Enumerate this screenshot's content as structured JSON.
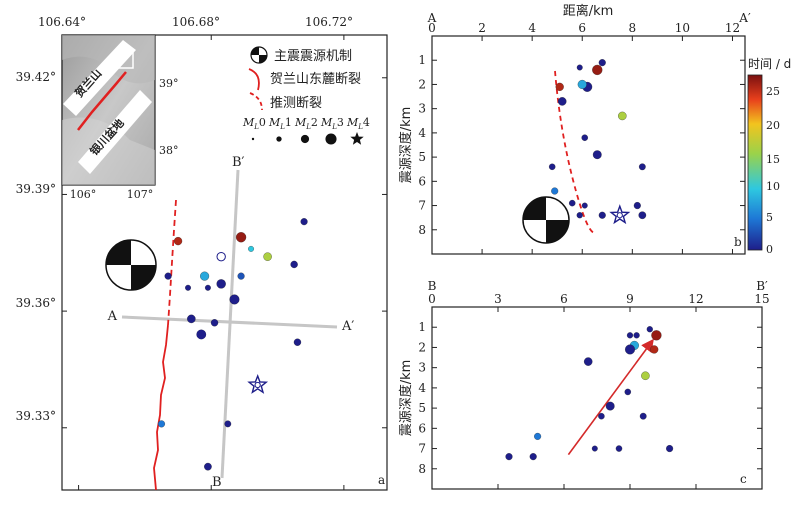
{
  "map": {
    "panel_label": "a",
    "lon_ticks": [
      "106.64°",
      "106.68°",
      "106.72°"
    ],
    "lat_ticks": [
      "39.42°",
      "39.39°",
      "39.36°",
      "39.33°"
    ],
    "profile_a_start": "A",
    "profile_a_end": "A′",
    "profile_b_start": "B",
    "profile_b_end": "B′",
    "inset": {
      "lon_ticks": [
        "106°",
        "107°"
      ],
      "lat_ticks": [
        "39°",
        "38°"
      ],
      "label_mountain": "贺兰山",
      "label_basin": "银川盆地"
    },
    "legend": {
      "mainshock": "主震震源机制",
      "fault": "贺兰山东麓断裂",
      "inferred_fault": "推测断裂",
      "mag_labels": [
        "M",
        "M",
        "M",
        "M",
        "M"
      ],
      "mag_subs": [
        "L",
        "L",
        "L",
        "L",
        "L"
      ],
      "mag_values": [
        "0",
        "1",
        "2",
        "3",
        "4"
      ]
    }
  },
  "colorbar": {
    "title": "时间 / d",
    "ticks": [
      "25",
      "20",
      "15",
      "10",
      "5",
      "0"
    ]
  },
  "chart_data": [
    {
      "type": "scatter",
      "panel_label": "a",
      "xlim": [
        106.635,
        106.733
      ],
      "ylim": [
        39.314,
        39.431
      ],
      "x_ticks": [
        106.64,
        106.68,
        106.72
      ],
      "y_ticks": [
        39.42,
        39.39,
        39.36,
        39.33
      ],
      "events": [
        {
          "x": 106.708,
          "y": 39.383,
          "day": 0,
          "mag": 1.5
        },
        {
          "x": 106.689,
          "y": 39.379,
          "day": 27,
          "mag": 2.6
        },
        {
          "x": 106.67,
          "y": 39.378,
          "day": 26,
          "mag": 1.9
        },
        {
          "x": 106.697,
          "y": 39.374,
          "day": 16,
          "mag": 2.0
        },
        {
          "x": 106.692,
          "y": 39.376,
          "day": 10,
          "mag": 1.1
        },
        {
          "x": 106.667,
          "y": 39.369,
          "day": 0,
          "mag": 1.5
        },
        {
          "x": 106.678,
          "y": 39.369,
          "day": 8,
          "mag": 2.2
        },
        {
          "x": 106.689,
          "y": 39.369,
          "day": 3,
          "mag": 1.5
        },
        {
          "x": 106.683,
          "y": 39.367,
          "day": 0,
          "mag": 2.3
        },
        {
          "x": 106.705,
          "y": 39.372,
          "day": 0,
          "mag": 1.6
        },
        {
          "x": 106.673,
          "y": 39.366,
          "day": 0,
          "mag": 1.1
        },
        {
          "x": 106.679,
          "y": 39.366,
          "day": 0,
          "mag": 1.1
        },
        {
          "x": 106.687,
          "y": 39.363,
          "day": 0,
          "mag": 2.5
        },
        {
          "x": 106.674,
          "y": 39.358,
          "day": 0,
          "mag": 2.0
        },
        {
          "x": 106.681,
          "y": 39.357,
          "day": 0,
          "mag": 1.6
        },
        {
          "x": 106.677,
          "y": 39.354,
          "day": 0,
          "mag": 2.4
        },
        {
          "x": 106.706,
          "y": 39.352,
          "day": 0,
          "mag": 1.6
        },
        {
          "x": 106.694,
          "y": 39.341,
          "day": 0,
          "mag": 3.1
        },
        {
          "x": 106.685,
          "y": 39.331,
          "day": 0,
          "mag": 1.4
        },
        {
          "x": 106.665,
          "y": 39.331,
          "day": 5,
          "mag": 1.5
        },
        {
          "x": 106.679,
          "y": 39.32,
          "day": 0,
          "mag": 1.7
        }
      ]
    },
    {
      "type": "scatter",
      "panel_label": "b",
      "title": "距离/km",
      "xlabel": "距离/km",
      "ylabel": "震源深度/km",
      "xlim": [
        0,
        12.5
      ],
      "ylim": [
        0,
        9
      ],
      "x_ticks": [
        0,
        2,
        4,
        6,
        8,
        10,
        12
      ],
      "y_ticks": [
        1,
        2,
        3,
        4,
        5,
        6,
        7,
        8
      ],
      "start_label": "A",
      "end_label": "A′",
      "events": [
        {
          "x": 6.8,
          "y": 1.1,
          "day": 0,
          "mag": 1.5
        },
        {
          "x": 6.6,
          "y": 1.4,
          "day": 27,
          "mag": 2.6
        },
        {
          "x": 5.9,
          "y": 1.3,
          "day": 0,
          "mag": 1.1
        },
        {
          "x": 5.1,
          "y": 2.1,
          "day": 26,
          "mag": 1.9
        },
        {
          "x": 6.2,
          "y": 2.1,
          "day": 0,
          "mag": 2.5
        },
        {
          "x": 6.0,
          "y": 2.0,
          "day": 8,
          "mag": 2.2
        },
        {
          "x": 5.2,
          "y": 2.7,
          "day": 0,
          "mag": 2.0
        },
        {
          "x": 7.6,
          "y": 3.3,
          "day": 16,
          "mag": 2.0
        },
        {
          "x": 6.1,
          "y": 4.2,
          "day": 0,
          "mag": 1.3
        },
        {
          "x": 6.6,
          "y": 4.9,
          "day": 0,
          "mag": 2.1
        },
        {
          "x": 4.8,
          "y": 5.4,
          "day": 0,
          "mag": 1.3
        },
        {
          "x": 8.4,
          "y": 5.4,
          "day": 0,
          "mag": 1.4
        },
        {
          "x": 4.9,
          "y": 6.4,
          "day": 5,
          "mag": 1.5
        },
        {
          "x": 5.6,
          "y": 6.9,
          "day": 0,
          "mag": 1.3
        },
        {
          "x": 6.1,
          "y": 7.0,
          "day": 0,
          "mag": 1.1
        },
        {
          "x": 8.2,
          "y": 7.0,
          "day": 0,
          "mag": 1.5
        },
        {
          "x": 5.9,
          "y": 7.4,
          "day": 0,
          "mag": 1.2
        },
        {
          "x": 6.8,
          "y": 7.4,
          "day": 0,
          "mag": 1.5
        },
        {
          "x": 8.4,
          "y": 7.4,
          "day": 0,
          "mag": 1.7
        },
        {
          "x": 7.5,
          "y": 7.4,
          "day": 0,
          "mag": 3.1
        }
      ]
    },
    {
      "type": "scatter",
      "panel_label": "c",
      "xlabel": "",
      "ylabel": "震源深度/km",
      "xlim": [
        0,
        15
      ],
      "ylim": [
        0,
        9
      ],
      "x_ticks": [
        0,
        3,
        6,
        9,
        12,
        15
      ],
      "y_ticks": [
        1,
        2,
        3,
        4,
        5,
        6,
        7,
        8
      ],
      "start_label": "B",
      "end_label": "B′",
      "arrow": {
        "from": [
          6.2,
          7.3
        ],
        "to": [
          10.0,
          1.7
        ]
      },
      "events": [
        {
          "x": 10.2,
          "y": 1.4,
          "day": 27,
          "mag": 2.6
        },
        {
          "x": 9.9,
          "y": 1.1,
          "day": 0,
          "mag": 1.2
        },
        {
          "x": 9.0,
          "y": 1.4,
          "day": 0,
          "mag": 1.2
        },
        {
          "x": 9.3,
          "y": 1.4,
          "day": 0,
          "mag": 1.2
        },
        {
          "x": 9.2,
          "y": 1.9,
          "day": 8,
          "mag": 2.2
        },
        {
          "x": 9.0,
          "y": 2.1,
          "day": 0,
          "mag": 2.5
        },
        {
          "x": 10.1,
          "y": 2.1,
          "day": 26,
          "mag": 1.9
        },
        {
          "x": 7.1,
          "y": 2.7,
          "day": 0,
          "mag": 2.0
        },
        {
          "x": 9.7,
          "y": 3.4,
          "day": 16,
          "mag": 2.0
        },
        {
          "x": 8.9,
          "y": 4.2,
          "day": 0,
          "mag": 1.3
        },
        {
          "x": 8.1,
          "y": 4.9,
          "day": 0,
          "mag": 2.1
        },
        {
          "x": 7.7,
          "y": 5.4,
          "day": 0,
          "mag": 1.3
        },
        {
          "x": 9.6,
          "y": 5.4,
          "day": 0,
          "mag": 1.4
        },
        {
          "x": 4.8,
          "y": 6.4,
          "day": 5,
          "mag": 1.5
        },
        {
          "x": 8.5,
          "y": 7.0,
          "day": 0,
          "mag": 1.3
        },
        {
          "x": 10.8,
          "y": 7.0,
          "day": 0,
          "mag": 1.5
        },
        {
          "x": 3.5,
          "y": 7.4,
          "day": 0,
          "mag": 1.5
        },
        {
          "x": 4.6,
          "y": 7.4,
          "day": 0,
          "mag": 1.5
        },
        {
          "x": 7.4,
          "y": 7.0,
          "day": 0,
          "mag": 1.1
        }
      ]
    }
  ]
}
